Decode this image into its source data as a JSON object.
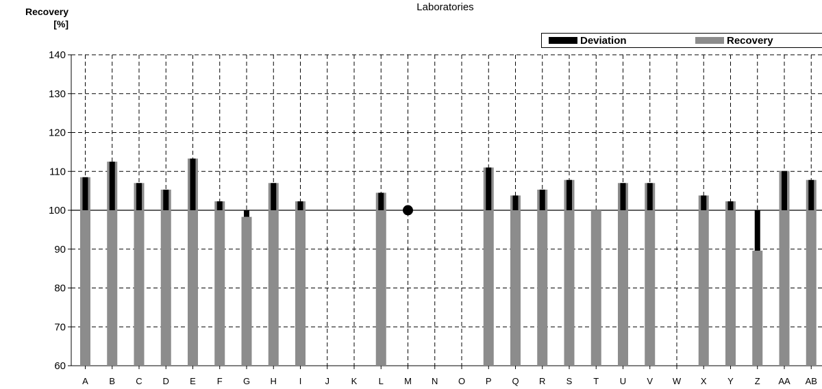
{
  "chart_data": {
    "type": "bar",
    "title": "Laboratories",
    "ylabel_line1": "Recovery",
    "ylabel_line2": "[%]",
    "ylim": [
      60,
      140
    ],
    "yticks": [
      60,
      70,
      80,
      90,
      100,
      110,
      120,
      130,
      140
    ],
    "reference_value": 100,
    "grid": true,
    "legend_placement": "top-right",
    "categories": [
      "A",
      "B",
      "C",
      "D",
      "E",
      "F",
      "G",
      "H",
      "I",
      "J",
      "K",
      "L",
      "M",
      "N",
      "O",
      "P",
      "Q",
      "R",
      "S",
      "T",
      "U",
      "V",
      "W",
      "X",
      "Y",
      "Z",
      "AA",
      "AB"
    ],
    "series": [
      {
        "name": "Recovery",
        "color": "#8c8c8c",
        "values": [
          108.5,
          112.5,
          107,
          105.3,
          113.3,
          102.3,
          98.3,
          107,
          102.3,
          null,
          null,
          104.5,
          null,
          null,
          null,
          111,
          103.8,
          105.3,
          107.8,
          100,
          107,
          107,
          null,
          103.8,
          102.3,
          89.6,
          110.1,
          107.8
        ]
      },
      {
        "name": "Deviation",
        "color": "#000000",
        "values": [
          8.5,
          12.5,
          7,
          5.3,
          13.3,
          2.3,
          -1.7,
          7,
          2.3,
          null,
          null,
          4.5,
          null,
          null,
          null,
          11,
          3.8,
          5.3,
          7.8,
          0,
          7,
          7,
          null,
          3.8,
          2.3,
          -10.4,
          10.1,
          7.8
        ]
      }
    ],
    "reference_points": [
      {
        "category": "M",
        "value": 100
      }
    ]
  }
}
